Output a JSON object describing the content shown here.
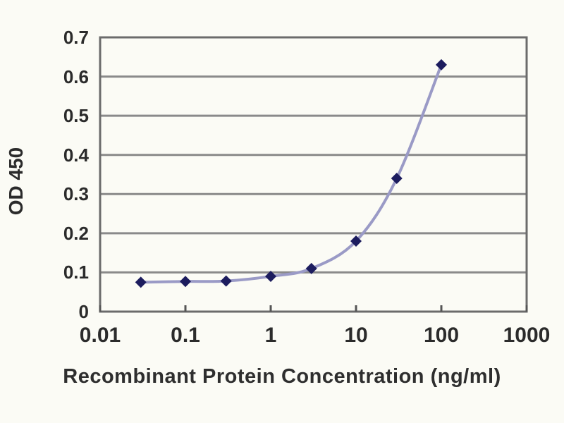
{
  "chart_data": {
    "type": "line",
    "title": "",
    "xlabel": "Recombinant Protein Concentration (ng/ml)",
    "ylabel": "OD 450",
    "x_scale": "log",
    "xlim": [
      0.01,
      1000
    ],
    "ylim": [
      0,
      0.7
    ],
    "x_ticks": [
      "0.01",
      "0.1",
      "1",
      "10",
      "100",
      "1000"
    ],
    "y_ticks": [
      "0",
      "0.1",
      "0.2",
      "0.3",
      "0.4",
      "0.5",
      "0.6",
      "0.7"
    ],
    "grid": "horizontal",
    "series": [
      {
        "name": "OD 450",
        "marker": "diamond",
        "x": [
          0.03,
          0.1,
          0.3,
          1,
          3,
          10,
          30,
          100
        ],
        "values": [
          0.075,
          0.077,
          0.078,
          0.09,
          0.11,
          0.18,
          0.34,
          0.63
        ]
      }
    ],
    "colors": {
      "line": "#9a9ac6",
      "marker": "#1c1c5e",
      "grid": "#8a8a8a",
      "axis_box": "#6b6b6b",
      "tick_mark": "#555555",
      "text": "#2b2b2b",
      "background": "#fbfbf5"
    }
  }
}
